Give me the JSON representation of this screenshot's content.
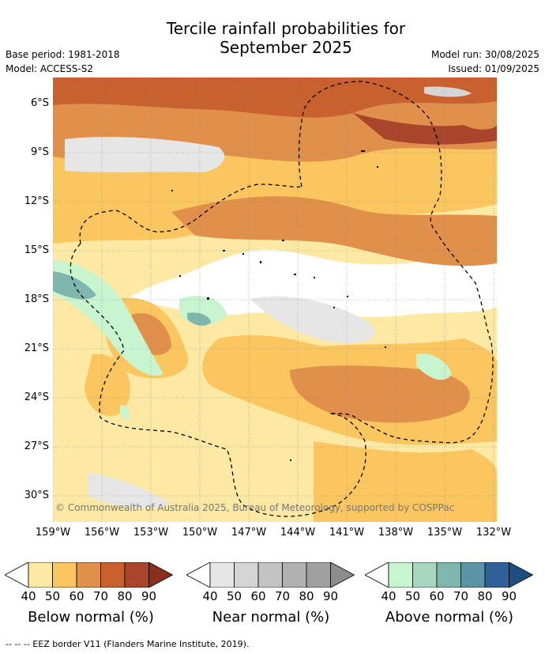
{
  "title_line1": "Tercile rainfall probabilities for",
  "title_line2": "September 2025",
  "base_period": "Base period: 1981-2018",
  "model": "Model: ACCESS-S2",
  "model_run": "Model run: 30/08/2025",
  "issued": "Issued: 01/09/2025",
  "copyright": "© Commonwealth of Australia 2025, Bureau of Meteorology, supported by COSPPac",
  "footnote": "--  --  -- EEZ border V11 (Flanders Marine Institute, 2019).",
  "y_labels": [
    "6°S",
    "9°S",
    "12°S",
    "15°S",
    "18°S",
    "21°S",
    "24°S",
    "27°S",
    "30°S"
  ],
  "x_labels": [
    "159°W",
    "156°W",
    "153°W",
    "150°W",
    "147°W",
    "144°W",
    "141°W",
    "138°W",
    "135°W",
    "132°W"
  ],
  "colorbars": [
    {
      "caption": "Below normal (%)",
      "ticks": [
        "40",
        "50",
        "60",
        "70",
        "80",
        "90"
      ],
      "colors": [
        "#ffffff",
        "#fde9a3",
        "#fbc65f",
        "#e0904a",
        "#c8612e",
        "#a8452a",
        "#8a2f1c"
      ]
    },
    {
      "caption": "Near normal (%)",
      "ticks": [
        "40",
        "50",
        "60",
        "70",
        "80",
        "90"
      ],
      "colors": [
        "#ffffff",
        "#e6e6e6",
        "#d5d5d5",
        "#c3c3c3",
        "#b1b1b1",
        "#a0a0a0",
        "#8c8c8c"
      ]
    },
    {
      "caption": "Above normal (%)",
      "ticks": [
        "40",
        "50",
        "60",
        "70",
        "80",
        "90"
      ],
      "colors": [
        "#ffffff",
        "#c8f5cf",
        "#a7d7c0",
        "#7fb6ae",
        "#5b94a5",
        "#2f6097",
        "#1e4d80"
      ]
    }
  ]
}
